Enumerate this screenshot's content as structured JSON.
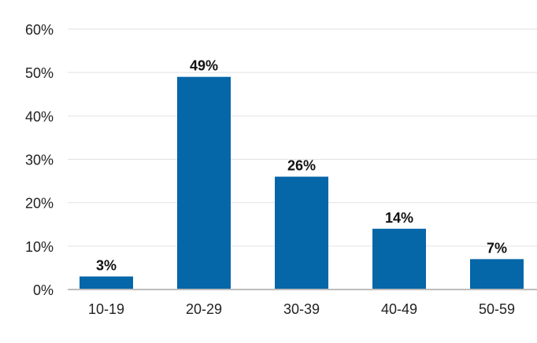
{
  "chart_data": {
    "type": "bar",
    "categories": [
      "10-19",
      "20-29",
      "30-39",
      "40-49",
      "50-59"
    ],
    "values": [
      3,
      49,
      26,
      14,
      7
    ],
    "data_labels": [
      "3%",
      "49%",
      "26%",
      "14%",
      "7%"
    ],
    "y_ticks": [
      "0%",
      "10%",
      "20%",
      "30%",
      "40%",
      "50%",
      "60%"
    ],
    "ylim": [
      0,
      60
    ],
    "title": "",
    "xlabel": "",
    "ylabel": "",
    "grid": true,
    "colors": {
      "bar": "#0566a8",
      "grid": "#e2e2e2",
      "axis": "#bdbdbd"
    }
  }
}
